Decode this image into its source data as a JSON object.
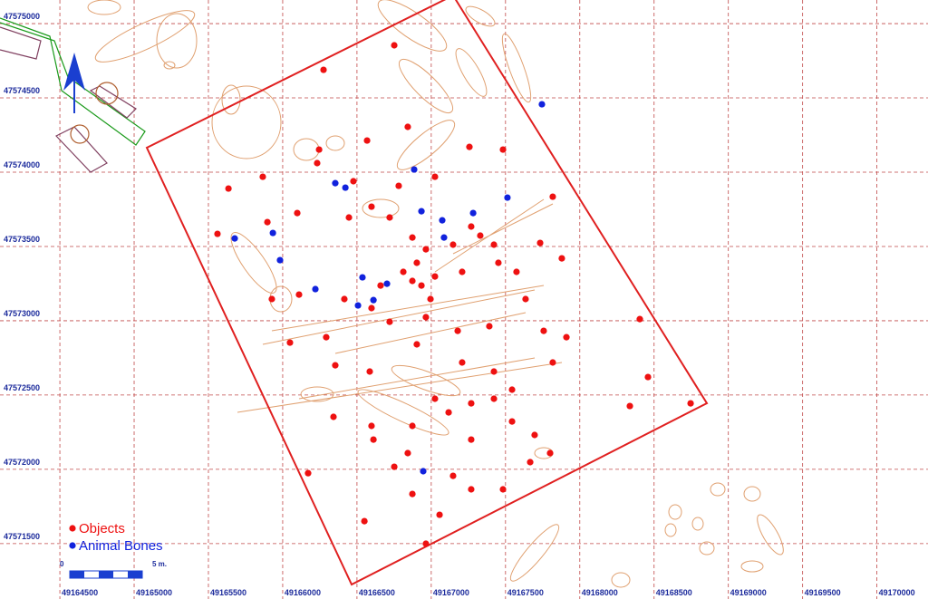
{
  "chart_data": {
    "type": "scatter",
    "xlim": [
      49164097,
      49170344
    ],
    "ylim": [
      47571127,
      47575159
    ],
    "xticks": [
      49164500,
      49165000,
      49165500,
      49166000,
      49166500,
      49167000,
      49167500,
      49168000,
      49168500,
      49169000,
      49169500,
      49170000
    ],
    "yticks": [
      47571500,
      47572000,
      47572500,
      47573000,
      47573500,
      47574000,
      47574500,
      47575000
    ],
    "grid": true,
    "legend": "bottom-left",
    "annotations": [
      "0",
      "5 m."
    ],
    "series": [
      {
        "name": "Objects",
        "color": "#ee1111",
        "x": [
          49166275,
          49166245,
          49166568,
          49166842,
          49166751,
          49167257,
          49167483,
          49167025,
          49166781,
          49166476,
          49166232,
          49165866,
          49165635,
          49165897,
          49165561,
          49166098,
          49166446,
          49166720,
          49166873,
          49166964,
          49166903,
          49166812,
          49166934,
          49167025,
          49167147,
          49167269,
          49167422,
          49167208,
          49167452,
          49167574,
          49167733,
          49167879,
          49167818,
          49167635,
          49167391,
          49167178,
          49166964,
          49166720,
          49166598,
          49166415,
          49166110,
          49165927,
          49166049,
          49166293,
          49166354,
          49166586,
          49166903,
          49167208,
          49167422,
          49167422,
          49167269,
          49167117,
          49167025,
          49166873,
          49166598,
          49166342,
          49166611,
          49166842,
          49167269,
          49167544,
          49167696,
          49167800,
          49167666,
          49167147,
          49166751,
          49166171,
          49166873,
          49167269,
          49167483,
          49167056,
          49166550,
          49166964,
          49168404,
          49168459,
          49168337,
          49168746,
          49167818,
          49167910,
          49167757,
          49166659,
          49166873,
          49166995,
          49167544,
          49166598,
          49167330
        ],
        "values": [
          47574689,
          47574152,
          47574213,
          47574305,
          47574854,
          47574170,
          47574152,
          47573969,
          47573908,
          47573939,
          47574061,
          47573969,
          47573890,
          47573664,
          47573585,
          47573725,
          47573695,
          47573695,
          47573560,
          47573481,
          47573390,
          47573329,
          47573237,
          47573298,
          47573512,
          47573634,
          47573512,
          47573329,
          47573390,
          47573329,
          47573524,
          47573420,
          47573835,
          47573146,
          47572963,
          47572932,
          47573024,
          47572993,
          47573085,
          47573146,
          47573176,
          47573146,
          47572853,
          47572889,
          47572700,
          47572658,
          47572841,
          47572719,
          47572658,
          47572475,
          47572444,
          47572383,
          47572475,
          47572292,
          47572292,
          47572353,
          47572200,
          47572109,
          47572200,
          47572322,
          47572231,
          47572109,
          47572048,
          47571956,
          47572017,
          47571974,
          47571834,
          47571865,
          47571865,
          47571694,
          47571651,
          47571499,
          47573011,
          47572621,
          47572426,
          47572444,
          47572719,
          47572889,
          47572932,
          47573237,
          47573268,
          47573146,
          47572536,
          47573768,
          47573573
        ]
      },
      {
        "name": "Animal Bones",
        "color": "#1122dd",
        "x": [
          49166885,
          49166354,
          49166422,
          49167074,
          49166934,
          49167282,
          49167513,
          49167086,
          49165934,
          49165677,
          49165982,
          49166220,
          49166537,
          49166702,
          49166611,
          49166507,
          49167745,
          49166946
        ],
        "values": [
          47574018,
          47573926,
          47573896,
          47573676,
          47573737,
          47573725,
          47573829,
          47573560,
          47573591,
          47573554,
          47573408,
          47573213,
          47573292,
          47573249,
          47573139,
          47573103,
          47574457,
          47571987
        ]
      }
    ]
  }
}
